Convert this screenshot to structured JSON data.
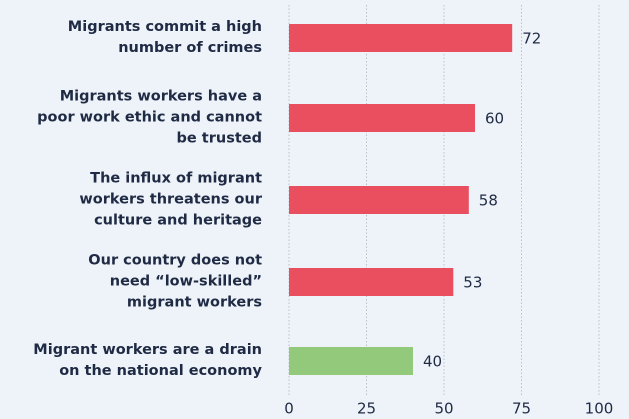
{
  "chart_data": {
    "type": "bar",
    "orientation": "horizontal",
    "categories": [
      "Migrants commit a high\nnumber of crimes",
      "Migrants workers have a\npoor work ethic and cannot\nbe trusted",
      "The influx of migrant\nworkers threatens our\nculture and heritage",
      "Our country does not\nneed “low-skilled”\nmigrant workers",
      "Migrant workers are a drain\non the national economy"
    ],
    "values": [
      72,
      60,
      58,
      53,
      40
    ],
    "colors": [
      "#ea4f5f",
      "#ea4f5f",
      "#ea4f5f",
      "#ea4f5f",
      "#93c97b"
    ],
    "xlim": [
      0,
      100
    ],
    "xticks": [
      0,
      25,
      50,
      75,
      100
    ],
    "grid": true
  }
}
